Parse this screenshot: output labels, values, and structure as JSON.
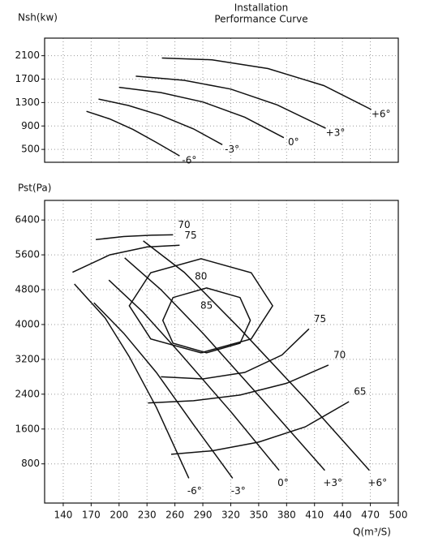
{
  "chart_data": [
    {
      "type": "line",
      "title": "Installation",
      "subtitle": "Performance Curve",
      "y_label": "Nsh(kw)",
      "xlim": [
        120,
        500
      ],
      "xticks": [
        140,
        170,
        200,
        230,
        260,
        290,
        320,
        350,
        380,
        410,
        440,
        470,
        500
      ],
      "ylim": [
        280,
        2400
      ],
      "yticks": [
        500,
        900,
        1300,
        1700,
        2100
      ],
      "grid": true,
      "color": "#111111",
      "series": [
        {
          "name": "-6°",
          "x": [
            165,
            190,
            215,
            240,
            265
          ],
          "values": [
            1150,
            1020,
            840,
            620,
            390
          ]
        },
        {
          "name": "-3°",
          "x": [
            178,
            210,
            245,
            280,
            311
          ],
          "values": [
            1360,
            1250,
            1080,
            850,
            580
          ]
        },
        {
          "name": "0°",
          "x": [
            200,
            245,
            290,
            335,
            377
          ],
          "values": [
            1560,
            1470,
            1310,
            1050,
            700
          ]
        },
        {
          "name": "+3°",
          "x": [
            218,
            270,
            320,
            370,
            422
          ],
          "values": [
            1750,
            1680,
            1530,
            1260,
            860
          ]
        },
        {
          "name": "+6°",
          "x": [
            246,
            300,
            360,
            420,
            471
          ],
          "values": [
            2060,
            2030,
            1880,
            1590,
            1180
          ]
        }
      ]
    },
    {
      "type": "line",
      "y_label": "Pst(Pa)",
      "x_label": "Q(m³/S)",
      "xlim": [
        120,
        500
      ],
      "xticks": [
        140,
        170,
        200,
        230,
        260,
        290,
        320,
        350,
        380,
        410,
        440,
        470,
        500
      ],
      "ylim": [
        -100,
        6850
      ],
      "yticks": [
        800,
        1600,
        2400,
        3200,
        4000,
        4800,
        5600,
        6400
      ],
      "grid": true,
      "color": "#111111",
      "series": [
        {
          "name": "-6°",
          "x": [
            152,
            185,
            211,
            240,
            275
          ],
          "values": [
            4930,
            4150,
            3260,
            2100,
            470
          ]
        },
        {
          "name": "-3°",
          "x": [
            173,
            205,
            240,
            280,
            322
          ],
          "values": [
            4500,
            3800,
            2900,
            1700,
            470
          ]
        },
        {
          "name": "0°",
          "x": [
            189,
            225,
            265,
            320,
            372
          ],
          "values": [
            5020,
            4300,
            3350,
            2000,
            650
          ]
        },
        {
          "name": "+3°",
          "x": [
            206,
            245,
            290,
            355,
            421
          ],
          "values": [
            5530,
            4800,
            3800,
            2250,
            650
          ]
        },
        {
          "name": "+6°",
          "x": [
            226,
            270,
            330,
            400,
            469
          ],
          "values": [
            5920,
            5200,
            3900,
            2300,
            650
          ]
        }
      ],
      "contours": [
        {
          "name": "85",
          "closed": true,
          "x": [
            294,
            330,
            341,
            330,
            294,
            258,
            247,
            258
          ],
          "values": [
            4840,
            4620,
            4095,
            3570,
            3350,
            3570,
            4095,
            4620
          ]
        },
        {
          "name": "80",
          "closed": true,
          "x": [
            288,
            342,
            365,
            342,
            288,
            234,
            211,
            234
          ],
          "values": [
            5510,
            5190,
            4430,
            3670,
            3350,
            3670,
            4430,
            5190
          ]
        },
        {
          "name": "75",
          "closed": false,
          "x": [
            150,
            190,
            230,
            265,
            null,
            245,
            290,
            335,
            375,
            404
          ],
          "values": [
            5200,
            5600,
            5780,
            5820,
            null,
            2800,
            2750,
            2900,
            3300,
            3900
          ]
        },
        {
          "name": "70",
          "closed": false,
          "x": [
            175,
            205,
            235,
            258,
            null,
            231,
            280,
            330,
            380,
            425
          ],
          "values": [
            5950,
            6020,
            6050,
            6060,
            null,
            2200,
            2250,
            2380,
            2650,
            3070
          ]
        },
        {
          "name": "65",
          "closed": false,
          "x": [
            256,
            300,
            350,
            400,
            447
          ],
          "values": [
            1020,
            1100,
            1300,
            1650,
            2230
          ]
        }
      ]
    }
  ]
}
